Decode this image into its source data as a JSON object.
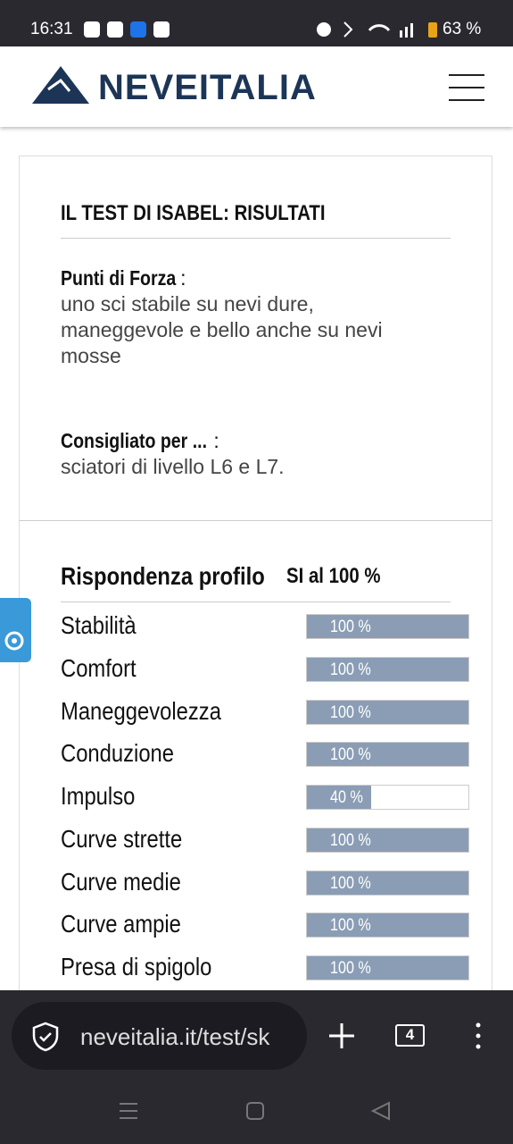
{
  "status_bar": {
    "time": "16:31",
    "battery": "63 %"
  },
  "header": {
    "logo": "NEVEITALIA"
  },
  "test": {
    "title": "IL TEST DI ISABEL: RISULTATI",
    "strengths": {
      "label": "Punti di Forza",
      "separator": ":",
      "text": "uno sci stabile su nevi dure, maneggevole e bello anche su nevi mosse"
    },
    "recommended": {
      "label": "Consigliato per ...",
      "separator": " :",
      "text": "sciatori di livello L6 e L7."
    }
  },
  "profile": {
    "title": "Rispondenza profilo",
    "summary": "SI al 100 %",
    "rows": [
      {
        "label": "Stabilità",
        "value": 100,
        "value_label": "100 %"
      },
      {
        "label": "Comfort",
        "value": 100,
        "value_label": "100 %"
      },
      {
        "label": "Maneggevolezza",
        "value": 100,
        "value_label": "100 %"
      },
      {
        "label": "Conduzione",
        "value": 100,
        "value_label": "100 %"
      },
      {
        "label": "Impulso",
        "value": 40,
        "value_label": "40 %"
      },
      {
        "label": "Curve strette",
        "value": 100,
        "value_label": "100 %"
      },
      {
        "label": "Curve medie",
        "value": 100,
        "value_label": "100 %"
      },
      {
        "label": "Curve ampie",
        "value": 100,
        "value_label": "100 %"
      },
      {
        "label": "Presa di spigolo",
        "value": 100,
        "value_label": "100 %"
      }
    ]
  },
  "browser": {
    "url": "neveitalia.it/test/sk",
    "tabs": "4"
  }
}
